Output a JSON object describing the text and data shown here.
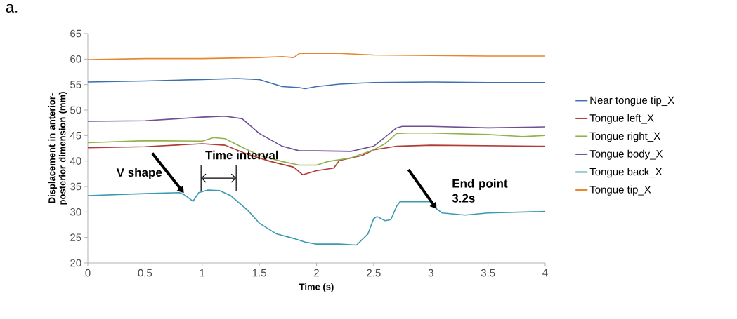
{
  "chart_data": {
    "type": "line",
    "title": "a.",
    "xlabel": "Time (s)",
    "ylabel": "Displacement in anterior-posterior dimension (mm)",
    "xlim": [
      0,
      4
    ],
    "ylim": [
      20,
      65
    ],
    "xticks": [
      0,
      0.5,
      1,
      1.5,
      2,
      2.5,
      3,
      3.5,
      4
    ],
    "yticks": [
      20,
      25,
      30,
      35,
      40,
      45,
      50,
      55,
      60,
      65
    ],
    "grid": false,
    "legend": "right",
    "marker": "none",
    "line_style": "solid",
    "series": [
      {
        "name": "Near tongue tip_X",
        "color": "#3e6fb0",
        "x": [
          0,
          0.5,
          1,
          1.3,
          1.5,
          1.7,
          1.85,
          1.9,
          2.0,
          2.2,
          2.5,
          3,
          3.5,
          4
        ],
        "values": [
          55.5,
          55.7,
          56.0,
          56.2,
          56.0,
          54.6,
          54.4,
          54.2,
          54.6,
          55.1,
          55.4,
          55.5,
          55.4,
          55.4
        ]
      },
      {
        "name": "Tongue left_X",
        "color": "#b03a36",
        "x": [
          0,
          0.5,
          1,
          1.2,
          1.4,
          1.6,
          1.8,
          1.88,
          2.0,
          2.15,
          2.2,
          2.4,
          2.5,
          2.7,
          3,
          3.5,
          4
        ],
        "values": [
          42.6,
          42.8,
          43.4,
          43.1,
          41.3,
          39.9,
          38.8,
          37.3,
          38.1,
          38.6,
          40.1,
          41.1,
          42.2,
          42.9,
          43.1,
          43.0,
          42.9
        ]
      },
      {
        "name": "Tongue right_X",
        "color": "#8fb24a",
        "x": [
          0,
          0.5,
          1,
          1.1,
          1.2,
          1.35,
          1.5,
          1.7,
          1.85,
          2.0,
          2.1,
          2.3,
          2.5,
          2.6,
          2.7,
          2.8,
          3,
          3.5,
          3.8,
          4
        ],
        "values": [
          43.6,
          44.0,
          43.9,
          44.6,
          44.4,
          42.7,
          41.1,
          39.9,
          39.2,
          39.2,
          39.9,
          40.6,
          42.2,
          43.4,
          45.4,
          45.5,
          45.5,
          45.2,
          44.8,
          45.0
        ]
      },
      {
        "name": "Tongue body_X",
        "color": "#6e4f96",
        "x": [
          0,
          0.5,
          1,
          1.2,
          1.35,
          1.5,
          1.7,
          1.85,
          2.0,
          2.3,
          2.5,
          2.6,
          2.7,
          2.75,
          3,
          3.5,
          4
        ],
        "values": [
          47.8,
          47.9,
          48.6,
          48.8,
          48.3,
          45.4,
          42.9,
          42.0,
          42.0,
          41.9,
          42.9,
          44.7,
          46.5,
          46.8,
          46.8,
          46.5,
          46.7
        ]
      },
      {
        "name": "Tongue back_X",
        "color": "#3a9bb0",
        "x": [
          0,
          0.5,
          0.8,
          0.85,
          0.92,
          0.97,
          1.05,
          1.15,
          1.25,
          1.4,
          1.5,
          1.65,
          1.8,
          1.9,
          2.0,
          2.2,
          2.35,
          2.45,
          2.5,
          2.53,
          2.6,
          2.65,
          2.7,
          2.73,
          2.8,
          3.0,
          3.05,
          3.1,
          3.3,
          3.5,
          4
        ],
        "values": [
          33.2,
          33.6,
          33.8,
          33.3,
          32.1,
          33.8,
          34.3,
          34.2,
          33.2,
          30.3,
          27.8,
          25.7,
          24.8,
          24.1,
          23.7,
          23.7,
          23.5,
          25.7,
          28.7,
          29.1,
          28.3,
          28.5,
          31.1,
          32.0,
          32.0,
          32.0,
          30.6,
          29.8,
          29.4,
          29.8,
          30.1
        ]
      },
      {
        "name": "Tongue tip_X",
        "color": "#e8862f",
        "x": [
          0,
          0.5,
          1,
          1.5,
          1.7,
          1.8,
          1.85,
          2.2,
          2.5,
          3,
          3.5,
          4
        ],
        "values": [
          59.9,
          60.1,
          60.1,
          60.3,
          60.5,
          60.3,
          61.1,
          61.1,
          60.8,
          60.7,
          60.6,
          60.6
        ]
      }
    ],
    "annotations": [
      {
        "text": "V shape",
        "x": 0.84,
        "y": 33.7
      },
      {
        "text": "Time interval",
        "x": 1.15,
        "y": 34.3
      },
      {
        "text": "End point 3.2s",
        "x": 3.05,
        "y": 30.6
      }
    ]
  }
}
